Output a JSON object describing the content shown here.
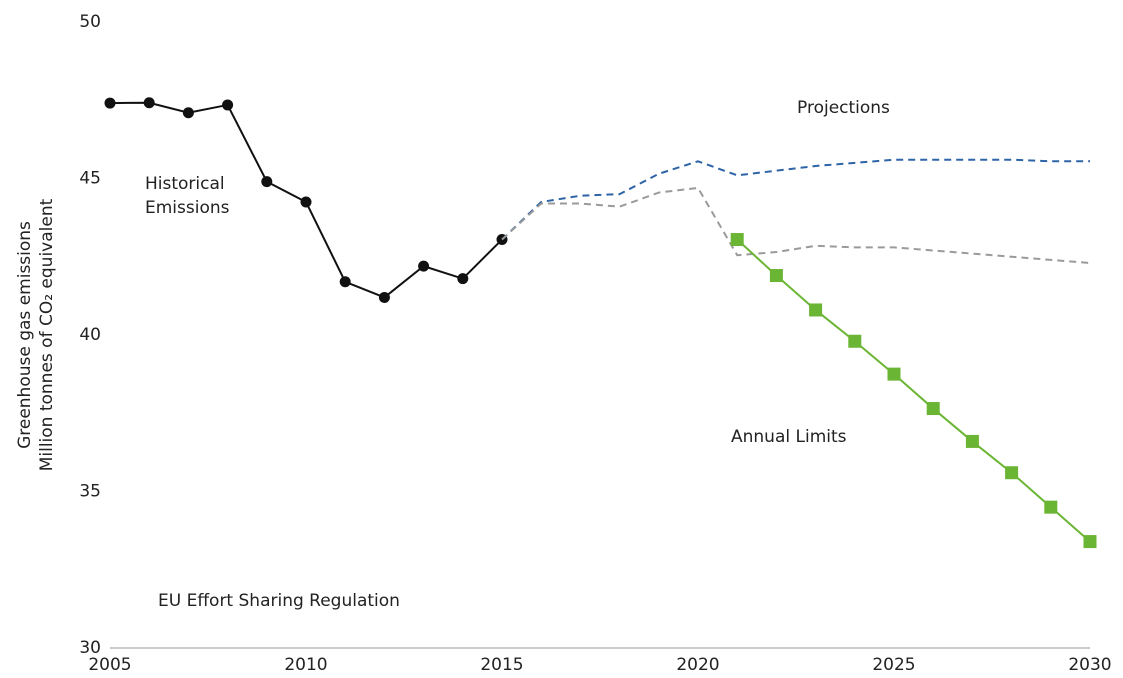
{
  "chart_data": {
    "type": "line",
    "ylabel": [
      "Greenhouse gas emissions",
      "Million tonnes of CO₂ equivalent"
    ],
    "note": "EU Effort Sharing Regulation",
    "x": [
      2005,
      2006,
      2007,
      2008,
      2009,
      2010,
      2011,
      2012,
      2013,
      2014,
      2015,
      2016,
      2017,
      2018,
      2019,
      2020,
      2021,
      2022,
      2023,
      2024,
      2025,
      2026,
      2027,
      2028,
      2029,
      2030
    ],
    "series": [
      {
        "name": "Historical Emissions",
        "color": "#111111",
        "dash": false,
        "marker": "circle",
        "values": [
          47.41,
          47.42,
          47.1,
          47.35,
          44.9,
          44.25,
          41.7,
          41.2,
          42.2,
          41.8,
          43.05,
          null,
          null,
          null,
          null,
          null,
          null,
          null,
          null,
          null,
          null,
          null,
          null,
          null,
          null,
          null
        ]
      },
      {
        "name": "Projections",
        "color": "#2e64a6",
        "dash": true,
        "marker": "none",
        "values": [
          null,
          null,
          null,
          null,
          null,
          null,
          null,
          null,
          null,
          null,
          43.05,
          44.25,
          44.45,
          44.5,
          45.15,
          45.55,
          45.1,
          45.25,
          45.4,
          45.5,
          45.6,
          45.6,
          45.6,
          45.6,
          45.55,
          45.55
        ]
      },
      {
        "color": "#9a9a9a",
        "dash": true,
        "marker": "none",
        "values": [
          null,
          null,
          null,
          null,
          null,
          null,
          null,
          null,
          null,
          null,
          43.05,
          44.2,
          44.2,
          44.1,
          44.55,
          44.7,
          42.55,
          42.65,
          42.85,
          42.8,
          42.8,
          42.7,
          42.6,
          42.5,
          42.4,
          42.3
        ]
      },
      {
        "name": "Annual Limits",
        "color": "#6ab533",
        "dash": false,
        "marker": "square",
        "values": [
          null,
          null,
          null,
          null,
          null,
          null,
          null,
          null,
          null,
          null,
          null,
          null,
          null,
          null,
          null,
          null,
          43.05,
          41.9,
          40.8,
          39.8,
          38.75,
          37.65,
          36.6,
          35.6,
          34.5,
          33.4
        ]
      }
    ],
    "xlim": [
      2005,
      2030
    ],
    "xticks": [
      2005,
      2010,
      2015,
      2020,
      2025,
      2030
    ],
    "ylim": [
      30,
      50
    ],
    "yticks": [
      30,
      35,
      40,
      45,
      50
    ],
    "grid": false
  }
}
